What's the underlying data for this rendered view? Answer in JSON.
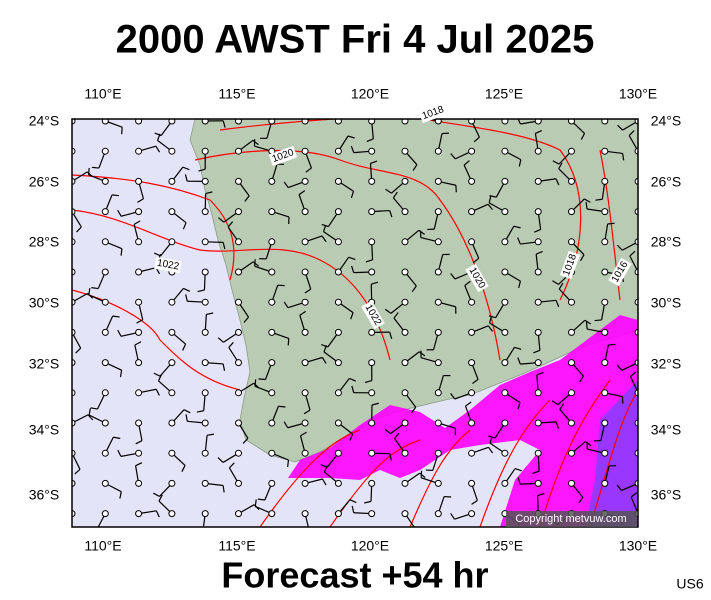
{
  "title": "2000 AWST Fri 4 Jul 2025",
  "footer": "Forecast +54 hr",
  "code": "US6",
  "copyright": "Copyright metvuw.com",
  "longitudes": [
    "110°E",
    "115°E",
    "120°E",
    "125°E",
    "130°E"
  ],
  "latitudes": [
    "24°S",
    "26°S",
    "28°S",
    "30°S",
    "32°S",
    "34°S",
    "36°S"
  ],
  "isobar_labels": [
    "1018",
    "1020",
    "1022",
    "1022",
    "1020",
    "1018",
    "1016"
  ]
}
